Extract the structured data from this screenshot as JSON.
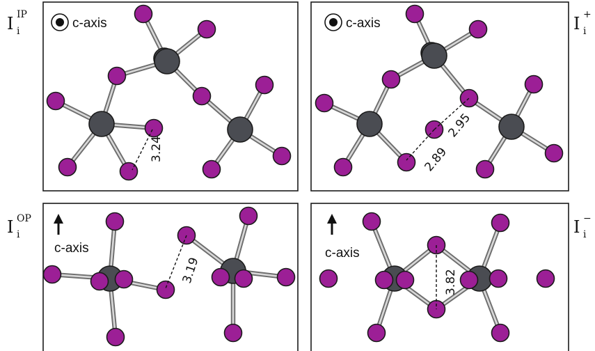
{
  "panels": {
    "ip": {
      "label": "I",
      "sub": "i",
      "sup": "IP",
      "axis_symbol": "⊙",
      "axis_text": "c-axis",
      "distances": [
        "3.24"
      ]
    },
    "plus": {
      "label": "I",
      "sub": "i",
      "sup": "+",
      "axis_symbol": "⊙",
      "axis_text": "c-axis",
      "distances": [
        "2.89",
        "2.95"
      ]
    },
    "op": {
      "label": "I",
      "sub": "i",
      "sup": "OP",
      "axis_symbol": "↑",
      "axis_text": "c-axis",
      "distances": [
        "3.19"
      ]
    },
    "minus": {
      "label": "I",
      "sub": "i",
      "sup": "−",
      "axis_symbol": "↑",
      "axis_text": "c-axis",
      "distances": [
        "3.82"
      ]
    }
  },
  "colors": {
    "iodine": "#9c1f96",
    "cation": "#4a4c52",
    "bond": "#6e6e6e"
  }
}
